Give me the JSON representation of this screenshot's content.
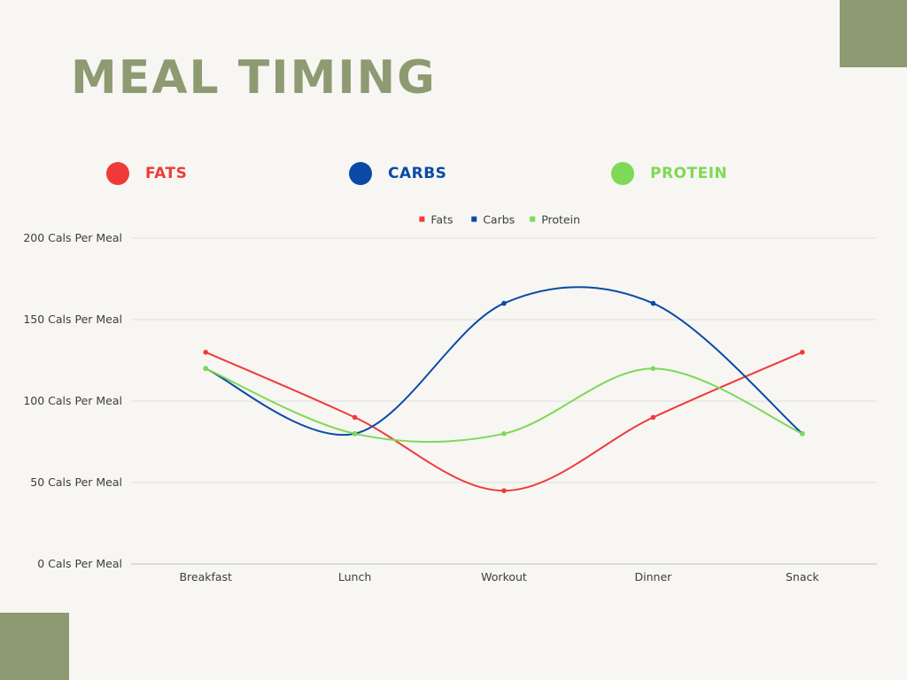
{
  "page": {
    "title": "MEAL TIMING",
    "accent_color": "#8e9a72",
    "background_color": "#f7f6f2"
  },
  "key_items": [
    {
      "label": "FATS",
      "color": "#f03a3a"
    },
    {
      "label": "CARBS",
      "color": "#0a4aa6"
    },
    {
      "label": "PROTEIN",
      "color": "#7ed957"
    }
  ],
  "chart_data": {
    "type": "line",
    "smooth": true,
    "categories": [
      "Breakfast",
      "Lunch",
      "Workout",
      "Dinner",
      "Snack"
    ],
    "series": [
      {
        "name": "Fats",
        "color": "#f03a3a",
        "values": [
          130,
          90,
          45,
          90,
          130
        ]
      },
      {
        "name": "Carbs",
        "color": "#0a4aa6",
        "values": [
          120,
          80,
          160,
          160,
          80
        ]
      },
      {
        "name": "Protein",
        "color": "#7ed957",
        "values": [
          120,
          80,
          80,
          120,
          80
        ]
      }
    ],
    "y_ticks": [
      {
        "value": 0,
        "label": "0 Cals Per Meal"
      },
      {
        "value": 50,
        "label": "50 Cals Per Meal"
      },
      {
        "value": 100,
        "label": "100 Cals Per Meal"
      },
      {
        "value": 150,
        "label": "150 Cals Per Meal"
      },
      {
        "value": 200,
        "label": "200 Cals Per Meal"
      }
    ],
    "ylim": [
      0,
      200
    ],
    "grid": true,
    "legend_position": "top-center"
  }
}
